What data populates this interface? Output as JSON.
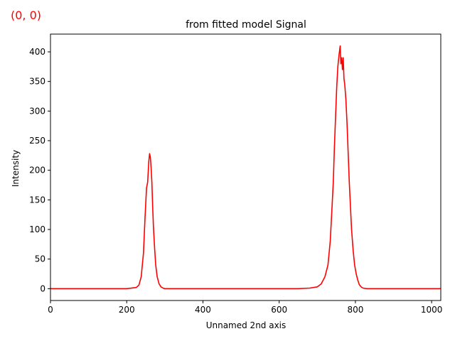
{
  "corner_label": "(0, 0)",
  "colors": {
    "line": "#ff0000",
    "corner_label": "#ff0000",
    "axes": "#000000"
  },
  "chart_data": {
    "type": "line",
    "title": "from fitted model Signal",
    "xlabel": "Unnamed 2nd axis",
    "ylabel": "Intensity",
    "xlim": [
      0,
      1024
    ],
    "ylim": [
      -20,
      430
    ],
    "xticks": [
      0,
      200,
      400,
      600,
      800,
      1000
    ],
    "yticks": [
      0,
      50,
      100,
      150,
      200,
      250,
      300,
      350,
      400
    ],
    "grid": false,
    "legend": "none",
    "series": [
      {
        "color": "#ff0000",
        "x": [
          0,
          200,
          225,
          232,
          238,
          244,
          248,
          252,
          255,
          258,
          260,
          262,
          264,
          266,
          268,
          270,
          273,
          276,
          280,
          285,
          290,
          295,
          300,
          310,
          400,
          600,
          650,
          680,
          700,
          710,
          720,
          728,
          734,
          738,
          742,
          745,
          748,
          751,
          754,
          757,
          760,
          762,
          764,
          766,
          768,
          770,
          772,
          775,
          778,
          781,
          784,
          787,
          790,
          794,
          798,
          802,
          806,
          810,
          815,
          820,
          830,
          900,
          1024
        ],
        "y": [
          0,
          0,
          2,
          6,
          20,
          60,
          120,
          170,
          180,
          215,
          228,
          222,
          205,
          180,
          140,
          105,
          70,
          40,
          20,
          8,
          3,
          1,
          0,
          0,
          0,
          0,
          0,
          1,
          3,
          8,
          20,
          40,
          80,
          130,
          180,
          240,
          290,
          340,
          375,
          395,
          410,
          380,
          390,
          370,
          390,
          355,
          345,
          320,
          280,
          230,
          180,
          140,
          100,
          65,
          40,
          25,
          15,
          7,
          3,
          1,
          0,
          0,
          0
        ]
      }
    ]
  }
}
